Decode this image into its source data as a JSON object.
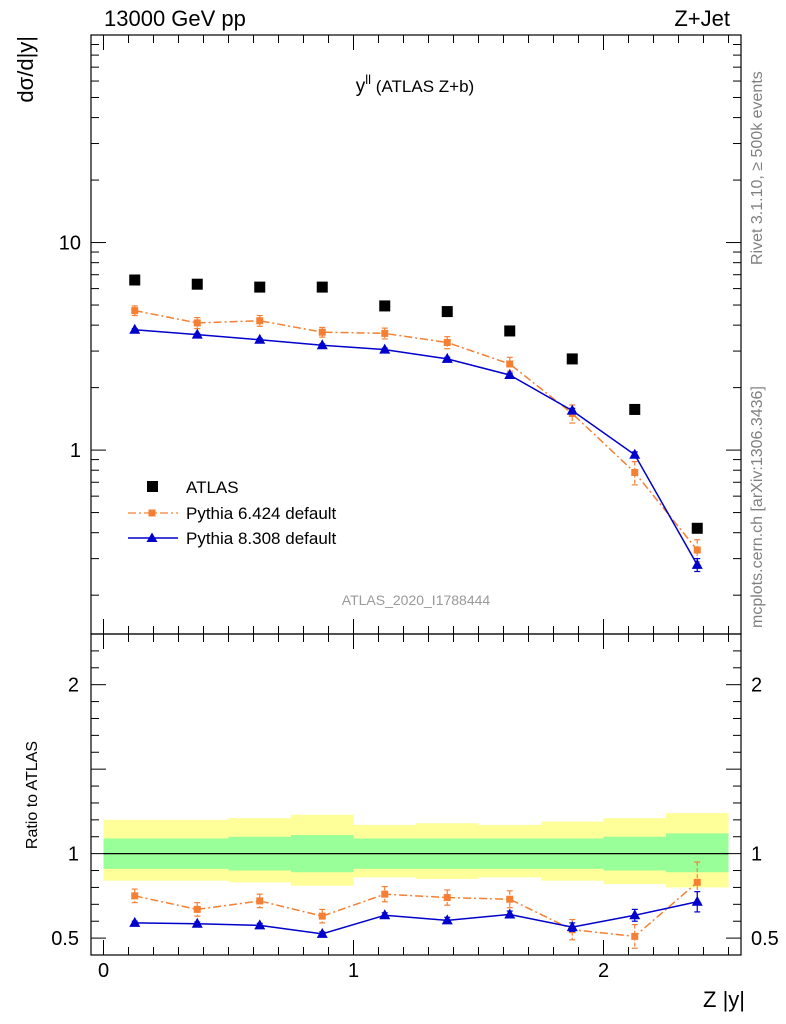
{
  "header": {
    "left": "13000 GeV pp",
    "right": "Z+Jet"
  },
  "side_labels": {
    "rivet": "Rivet 3.1.10, ≥ 500k events",
    "mcplots": "mcplots.cern.ch [arXiv:1306.3436]"
  },
  "chart_data": [
    {
      "type": "scatter",
      "title": "y",
      "title_superscript": "ll",
      "title_suffix": " (ATLAS Z+b)",
      "xlabel": "",
      "ylabel": "dσ/d|y|",
      "yscale": "log",
      "xlim": [
        -0.05,
        2.55
      ],
      "ylim": [
        0.13,
        100
      ],
      "y_tick_labels": [
        "1",
        "10"
      ],
      "watermark": "ATLAS_2020_I1788444",
      "legend_position": "lower-left",
      "x": [
        0.125,
        0.375,
        0.625,
        0.875,
        1.125,
        1.375,
        1.625,
        1.875,
        2.125,
        2.375
      ],
      "series": [
        {
          "name": "ATLAS",
          "color": "#000000",
          "marker": "square",
          "values": [
            6.6,
            6.3,
            6.1,
            6.1,
            4.95,
            4.65,
            3.75,
            2.75,
            1.57,
            0.42
          ]
        },
        {
          "name": "Pythia 6.424 default",
          "color": "#f58033",
          "marker": "square",
          "line": "dashdot",
          "values": [
            4.7,
            4.1,
            4.2,
            3.7,
            3.65,
            3.3,
            2.6,
            1.5,
            0.78,
            0.33
          ],
          "errors": [
            0.25,
            0.25,
            0.25,
            0.2,
            0.22,
            0.22,
            0.2,
            0.15,
            0.1,
            0.04
          ]
        },
        {
          "name": "Pythia 8.308 default",
          "color": "#0000cc",
          "marker": "triangle",
          "line": "solid",
          "values": [
            3.8,
            3.6,
            3.4,
            3.2,
            3.05,
            2.75,
            2.3,
            1.55,
            0.95,
            0.28
          ],
          "errors": [
            0.05,
            0.05,
            0.05,
            0.05,
            0.05,
            0.05,
            0.05,
            0.04,
            0.03,
            0.02
          ]
        }
      ]
    },
    {
      "type": "line",
      "title": "",
      "xlabel": "Z |y|",
      "ylabel": "Ratio to ATLAS",
      "xlim": [
        -0.05,
        2.55
      ],
      "ylim": [
        0.4,
        2.3
      ],
      "x_tick_labels": [
        "0",
        "1",
        "2"
      ],
      "y_tick_labels": [
        "0.5",
        "1",
        "2"
      ],
      "reference_line": 1,
      "bands": {
        "edges": [
          0,
          0.25,
          0.5,
          0.75,
          1.0,
          1.25,
          1.5,
          1.75,
          2.0,
          2.25,
          2.5
        ],
        "green_lo": [
          0.91,
          0.91,
          0.9,
          0.89,
          0.91,
          0.91,
          0.91,
          0.91,
          0.9,
          0.89
        ],
        "green_hi": [
          1.09,
          1.09,
          1.1,
          1.11,
          1.09,
          1.09,
          1.09,
          1.09,
          1.1,
          1.12
        ],
        "yellow_lo": [
          0.84,
          0.84,
          0.83,
          0.81,
          0.86,
          0.85,
          0.86,
          0.84,
          0.82,
          0.8
        ],
        "yellow_hi": [
          1.2,
          1.2,
          1.21,
          1.23,
          1.17,
          1.18,
          1.17,
          1.19,
          1.21,
          1.24
        ],
        "green_color": "#99ff99",
        "yellow_color": "#ffff99"
      },
      "x": [
        0.125,
        0.375,
        0.625,
        0.875,
        1.125,
        1.375,
        1.625,
        1.875,
        2.125,
        2.375
      ],
      "series": [
        {
          "name": "Pythia 6.424 default",
          "color": "#f58033",
          "marker": "square",
          "line": "dashdot",
          "values": [
            0.75,
            0.67,
            0.72,
            0.63,
            0.76,
            0.74,
            0.73,
            0.55,
            0.51,
            0.83
          ],
          "errors": [
            0.04,
            0.04,
            0.04,
            0.04,
            0.045,
            0.045,
            0.05,
            0.06,
            0.07,
            0.12
          ]
        },
        {
          "name": "Pythia 8.308 default",
          "color": "#0000cc",
          "marker": "triangle",
          "line": "solid",
          "values": [
            0.59,
            0.585,
            0.575,
            0.525,
            0.635,
            0.605,
            0.64,
            0.565,
            0.635,
            0.715
          ],
          "errors": [
            0.01,
            0.01,
            0.012,
            0.012,
            0.015,
            0.018,
            0.02,
            0.025,
            0.035,
            0.06
          ]
        }
      ]
    }
  ]
}
